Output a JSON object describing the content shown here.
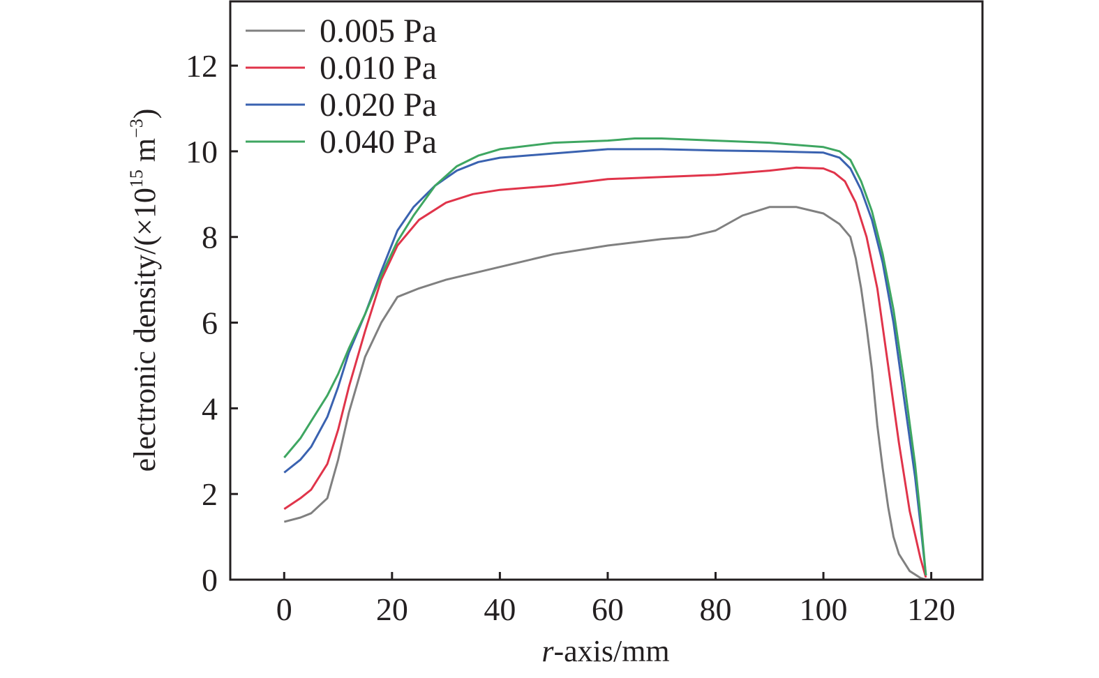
{
  "chart_data": {
    "type": "line",
    "title": "",
    "xlabel": "r-axis/mm",
    "xlabel_italic_part": "r",
    "xlabel_rest": "-axis/mm",
    "ylabel": "electronic density/(×10^15 m^-3)",
    "ylabel_parts": {
      "main": "electronic density/(×10",
      "exp1": "15",
      "mid": " m",
      "exp2": "−3",
      "end": ")"
    },
    "xlim": [
      -10,
      129.5
    ],
    "ylim": [
      0,
      13.5
    ],
    "xticks": [
      0,
      20,
      40,
      60,
      80,
      100,
      120
    ],
    "yticks": [
      0,
      2,
      4,
      6,
      8,
      10,
      12
    ],
    "grid": false,
    "legend_position": "top-left",
    "series": [
      {
        "name": "0.005 Pa",
        "color": "#808080",
        "x": [
          0,
          3,
          5,
          8,
          10,
          12,
          15,
          18,
          21,
          25,
          30,
          40,
          50,
          60,
          70,
          75,
          80,
          85,
          90,
          95,
          100,
          103,
          105,
          106,
          107,
          108,
          109,
          110,
          111,
          112,
          113,
          114,
          116,
          118,
          119
        ],
        "y": [
          1.35,
          1.45,
          1.55,
          1.9,
          2.8,
          3.9,
          5.2,
          6.0,
          6.6,
          6.8,
          7.0,
          7.3,
          7.6,
          7.8,
          7.95,
          8.0,
          8.15,
          8.5,
          8.7,
          8.7,
          8.55,
          8.3,
          8.0,
          7.5,
          6.8,
          5.9,
          4.9,
          3.6,
          2.6,
          1.7,
          1.0,
          0.6,
          0.2,
          0.04,
          0
        ]
      },
      {
        "name": "0.010 Pa",
        "color": "#e0344a",
        "x": [
          0,
          3,
          5,
          8,
          10,
          12,
          15,
          18,
          21,
          25,
          30,
          35,
          40,
          50,
          60,
          70,
          80,
          90,
          95,
          100,
          102,
          104,
          106,
          108,
          110,
          112,
          114,
          116,
          118,
          119
        ],
        "y": [
          1.65,
          1.9,
          2.1,
          2.7,
          3.5,
          4.5,
          5.8,
          7.0,
          7.8,
          8.4,
          8.8,
          9.0,
          9.1,
          9.2,
          9.35,
          9.4,
          9.45,
          9.55,
          9.62,
          9.6,
          9.5,
          9.3,
          8.8,
          8.0,
          6.8,
          5.0,
          3.2,
          1.6,
          0.5,
          0.05
        ]
      },
      {
        "name": "0.020 Pa",
        "color": "#3a62b0",
        "x": [
          0,
          3,
          5,
          8,
          10,
          12,
          15,
          18,
          21,
          24,
          28,
          32,
          36,
          40,
          50,
          60,
          70,
          80,
          90,
          100,
          103,
          105,
          107,
          109,
          111,
          113,
          115,
          117,
          118,
          119
        ],
        "y": [
          2.5,
          2.8,
          3.1,
          3.8,
          4.5,
          5.3,
          6.2,
          7.2,
          8.15,
          8.7,
          9.2,
          9.55,
          9.75,
          9.85,
          9.95,
          10.05,
          10.05,
          10.02,
          10.0,
          9.97,
          9.85,
          9.6,
          9.1,
          8.4,
          7.4,
          6.0,
          4.2,
          2.4,
          1.3,
          0.1
        ]
      },
      {
        "name": "0.040 Pa",
        "color": "#3ea661",
        "x": [
          0,
          3,
          5,
          8,
          10,
          12,
          15,
          18,
          21,
          24,
          28,
          32,
          36,
          40,
          50,
          60,
          65,
          70,
          80,
          90,
          95,
          100,
          103,
          105,
          107,
          109,
          111,
          113,
          115,
          117,
          118,
          119
        ],
        "y": [
          2.85,
          3.3,
          3.7,
          4.3,
          4.8,
          5.4,
          6.2,
          7.1,
          7.9,
          8.5,
          9.2,
          9.65,
          9.9,
          10.05,
          10.2,
          10.25,
          10.3,
          10.3,
          10.25,
          10.2,
          10.15,
          10.1,
          10.0,
          9.8,
          9.3,
          8.6,
          7.6,
          6.3,
          4.6,
          2.7,
          1.5,
          0.1
        ]
      }
    ]
  }
}
